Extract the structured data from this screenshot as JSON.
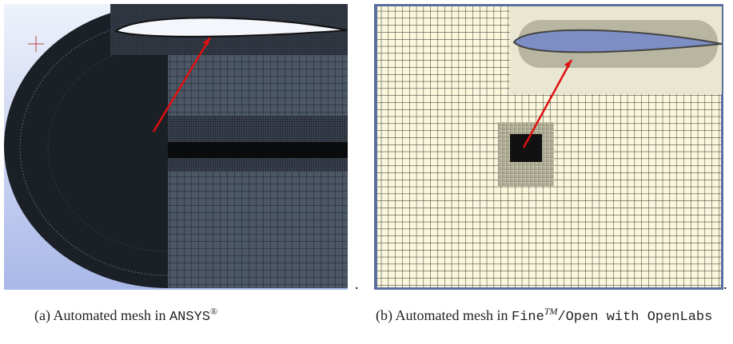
{
  "figures": [
    {
      "caption": {
        "label": "(a)",
        "text": "Automated mesh in",
        "code": "ANSYS",
        "sup": "®"
      }
    },
    {
      "caption": {
        "label": "(b)",
        "text": "Automated mesh in",
        "code": "Fine",
        "sup": "TM",
        "code_rest": "/Open with OpenLabs"
      }
    }
  ],
  "trailing_mark": "."
}
